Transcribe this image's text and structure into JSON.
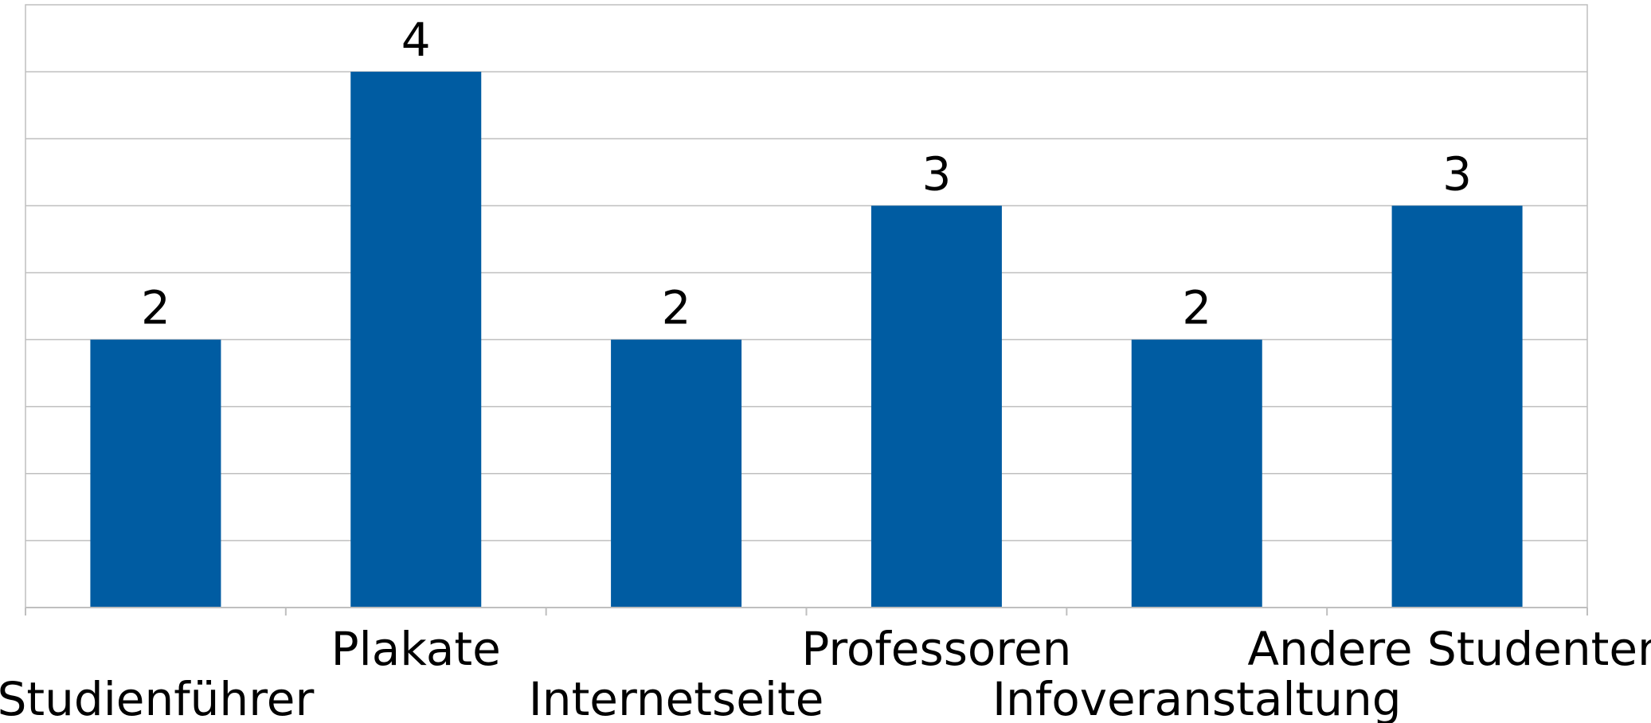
{
  "chart_data": {
    "type": "bar",
    "categories": [
      "Studienführer",
      "Plakate",
      "Internetseite",
      "Professoren",
      "Infoveranstaltung",
      "Andere Studenten"
    ],
    "values": [
      2,
      4,
      2,
      3,
      2,
      3
    ],
    "data_labels": [
      "2",
      "4",
      "2",
      "3",
      "2",
      "3"
    ],
    "title": "",
    "xlabel": "",
    "ylabel": "",
    "ylim": [
      0,
      4.5
    ],
    "grid_step": 0.5,
    "grid": true,
    "legend": "none",
    "bar_color": "#005ca2",
    "grid_color": "#bfbfbf",
    "axis_color": "#bfbfbf"
  }
}
